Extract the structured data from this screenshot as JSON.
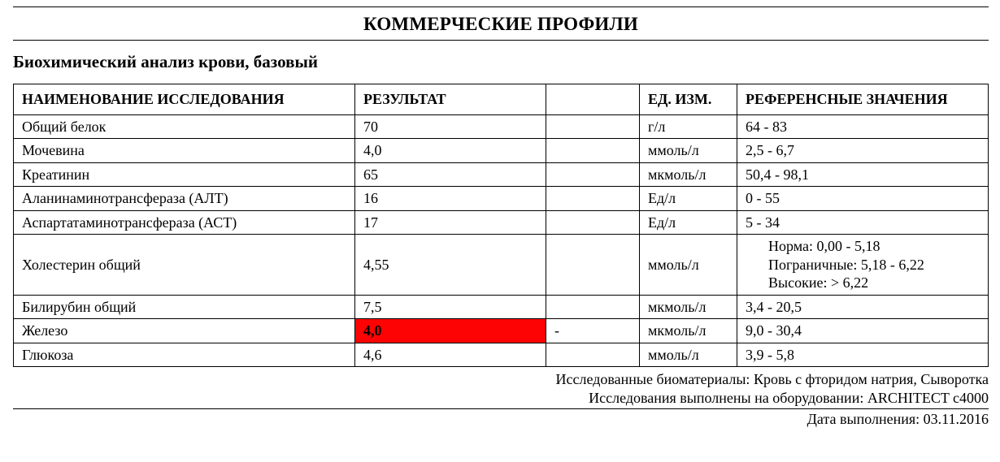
{
  "header": {
    "page_title": "КОММЕРЧЕСКИЕ ПРОФИЛИ",
    "section_title": "Биохимический анализ крови, базовый"
  },
  "table": {
    "columns": {
      "name": "НАИМЕНОВАНИЕ ИССЛЕДОВАНИЯ",
      "result": "РЕЗУЛЬТАТ",
      "flag": "",
      "unit": "ЕД. ИЗМ.",
      "ref": "РЕФЕРЕНСНЫЕ ЗНАЧЕНИЯ"
    },
    "rows": [
      {
        "name": "Общий белок",
        "result": "70",
        "flag": "",
        "unit": "г/л",
        "ref": "64 - 83",
        "highlight": false
      },
      {
        "name": "Мочевина",
        "result": "4,0",
        "flag": "",
        "unit": "ммоль/л",
        "ref": "2,5 - 6,7",
        "highlight": false
      },
      {
        "name": "Креатинин",
        "result": "65",
        "flag": "",
        "unit": "мкмоль/л",
        "ref": "50,4 - 98,1",
        "highlight": false
      },
      {
        "name": "Аланинаминотрансфераза (АЛТ)",
        "result": "16",
        "flag": "",
        "unit": "Ед/л",
        "ref": "0 - 55",
        "highlight": false
      },
      {
        "name": "Аспартатаминотрансфераза (АСТ)",
        "result": "17",
        "flag": "",
        "unit": "Ед/л",
        "ref": "5 - 34",
        "highlight": false
      },
      {
        "name": "Холестерин общий",
        "result": "4,55",
        "flag": "",
        "unit": "ммоль/л",
        "ref_lines": [
          "Норма: 0,00 - 5,18",
          "Пограничные: 5,18 - 6,22",
          "Высокие: > 6,22"
        ],
        "highlight": false
      },
      {
        "name": "Билирубин общий",
        "result": "7,5",
        "flag": "",
        "unit": "мкмоль/л",
        "ref": "3,4 - 20,5",
        "highlight": false
      },
      {
        "name": "Железо",
        "result": "4,0",
        "flag": "-",
        "unit": "мкмоль/л",
        "ref": "9,0 - 30,4",
        "highlight": true
      },
      {
        "name": "Глюкоза",
        "result": "4,6",
        "flag": "",
        "unit": "ммоль/л",
        "ref": "3,9 - 5,8",
        "highlight": false
      }
    ]
  },
  "footer": {
    "line1": "Исследованные биоматериалы: Кровь с фторидом натрия, Сыворотка",
    "line2": "Исследования выполнены на оборудовании: ARCHITECT c4000",
    "date": "Дата выполнения: 03.11.2016"
  },
  "style": {
    "highlight_bg": "#fd0303",
    "text_color": "#000000",
    "background": "#ffffff",
    "font_family": "Times New Roman",
    "border_color": "#000000"
  }
}
